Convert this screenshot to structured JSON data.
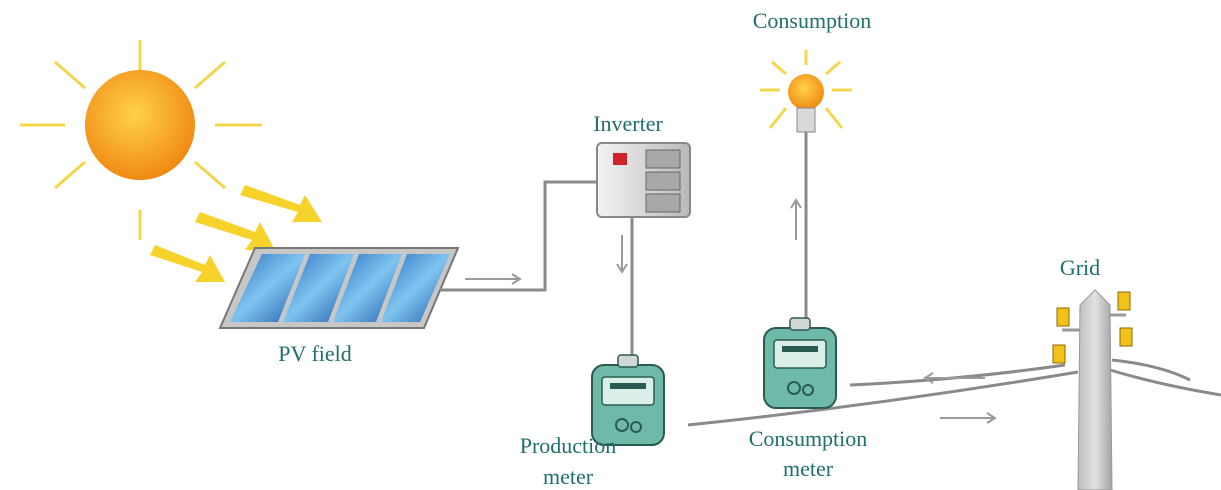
{
  "nodes": [
    {
      "id": "consumption",
      "label": [
        "Consumption"
      ]
    },
    {
      "id": "inverter",
      "label": [
        "Inverter"
      ]
    },
    {
      "id": "pv",
      "label": [
        "PV field"
      ]
    },
    {
      "id": "production-meter",
      "label": [
        "Production",
        "meter"
      ]
    },
    {
      "id": "consumption-meter",
      "label": [
        "Consumption",
        "meter"
      ]
    },
    {
      "id": "grid",
      "label": [
        "Grid"
      ]
    }
  ]
}
